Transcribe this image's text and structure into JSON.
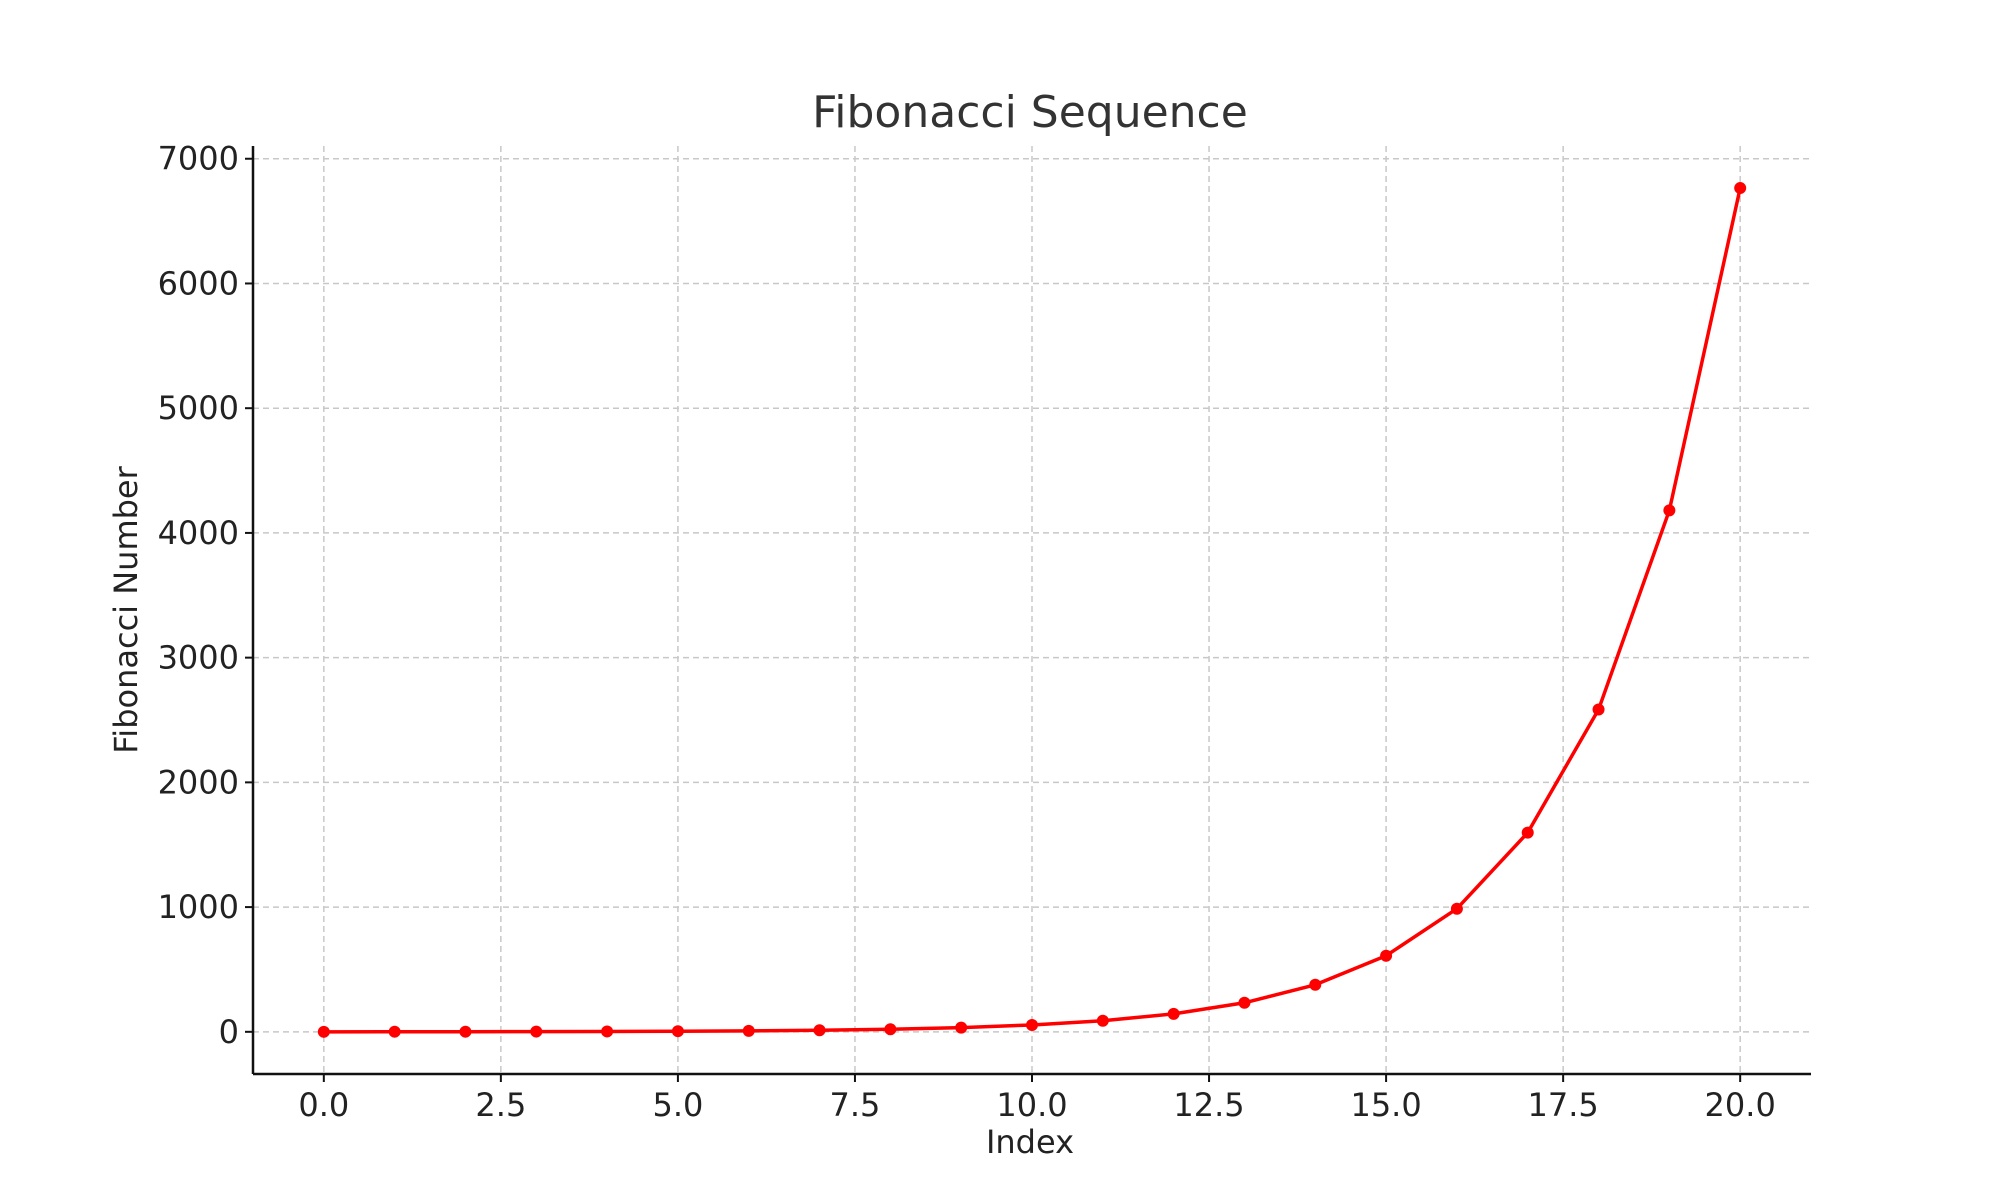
{
  "chart_data": {
    "type": "line",
    "title": "Fibonacci Sequence",
    "xlabel": "Index",
    "ylabel": "Fibonacci Number",
    "xlim": [
      -1,
      21
    ],
    "ylim": [
      -338.2,
      7102.2
    ],
    "xticks": [
      0,
      2.5,
      5,
      7.5,
      10,
      12.5,
      15,
      17.5,
      20
    ],
    "xtick_labels": [
      "0.0",
      "2.5",
      "5.0",
      "7.5",
      "10.0",
      "12.5",
      "15.0",
      "17.5",
      "20.0"
    ],
    "yticks": [
      0,
      1000,
      2000,
      3000,
      4000,
      5000,
      6000,
      7000
    ],
    "ytick_labels": [
      "0",
      "1000",
      "2000",
      "3000",
      "4000",
      "5000",
      "6000",
      "7000"
    ],
    "grid": true,
    "series": [
      {
        "color": "#ff0000",
        "marker": "circle",
        "x": [
          0,
          1,
          2,
          3,
          4,
          5,
          6,
          7,
          8,
          9,
          10,
          11,
          12,
          13,
          14,
          15,
          16,
          17,
          18,
          19,
          20
        ],
        "y": [
          0,
          1,
          1,
          2,
          3,
          5,
          8,
          13,
          21,
          34,
          55,
          89,
          144,
          233,
          377,
          610,
          987,
          1597,
          2584,
          4181,
          6765
        ]
      }
    ]
  }
}
